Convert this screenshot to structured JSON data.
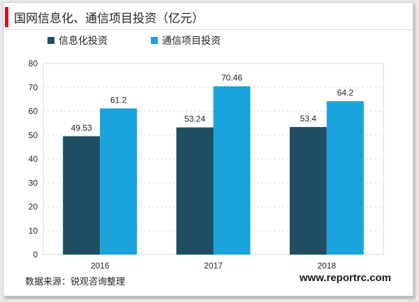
{
  "header": {
    "title": "国网信息化、通信项目投资（亿元）"
  },
  "colors": {
    "series1": "#1f4e63",
    "series2": "#1aa3dd",
    "accent": "#d7101d",
    "grid": "#d9d9d9"
  },
  "footer": {
    "source": "数据来源：锐观咨询整理",
    "site": "www.reportrc.com"
  },
  "chart_data": {
    "type": "bar",
    "title": "国网信息化、通信项目投资（亿元）",
    "categories": [
      "2016",
      "2017",
      "2018"
    ],
    "series": [
      {
        "name": "信息化投资",
        "values": [
          49.53,
          53.24,
          53.4
        ],
        "labels": [
          "49.53",
          "53.24",
          "53.4"
        ]
      },
      {
        "name": "通信项目投资",
        "values": [
          61.2,
          70.46,
          64.2
        ],
        "labels": [
          "61.2",
          "70.46",
          "64.2"
        ]
      }
    ],
    "ylim": [
      0,
      80
    ],
    "yticks": [
      "0",
      "10",
      "20",
      "30",
      "40",
      "50",
      "60",
      "70",
      "80"
    ],
    "grid": true,
    "legend": "top-left"
  }
}
